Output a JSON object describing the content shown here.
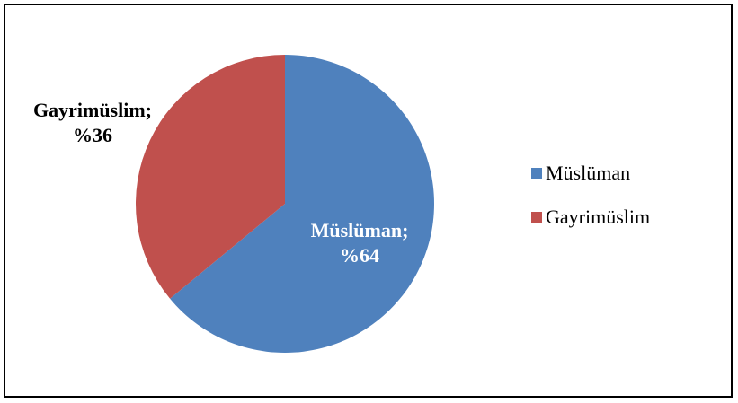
{
  "chart_data": {
    "type": "pie",
    "title": "",
    "slices": [
      {
        "name": "Müslüman",
        "value": 64,
        "label_name": "Müslüman;",
        "label_value": "%64",
        "color": "#4F81BD",
        "label_color": "#ffffff"
      },
      {
        "name": "Gayrimüslim",
        "value": 36,
        "label_name": "Gayrimüslim;",
        "label_value": "%36",
        "color": "#C0504D",
        "label_color": "#000000"
      }
    ],
    "legend": {
      "placement": "right",
      "entries": [
        "Müslüman",
        "Gayrimüslim"
      ]
    }
  }
}
